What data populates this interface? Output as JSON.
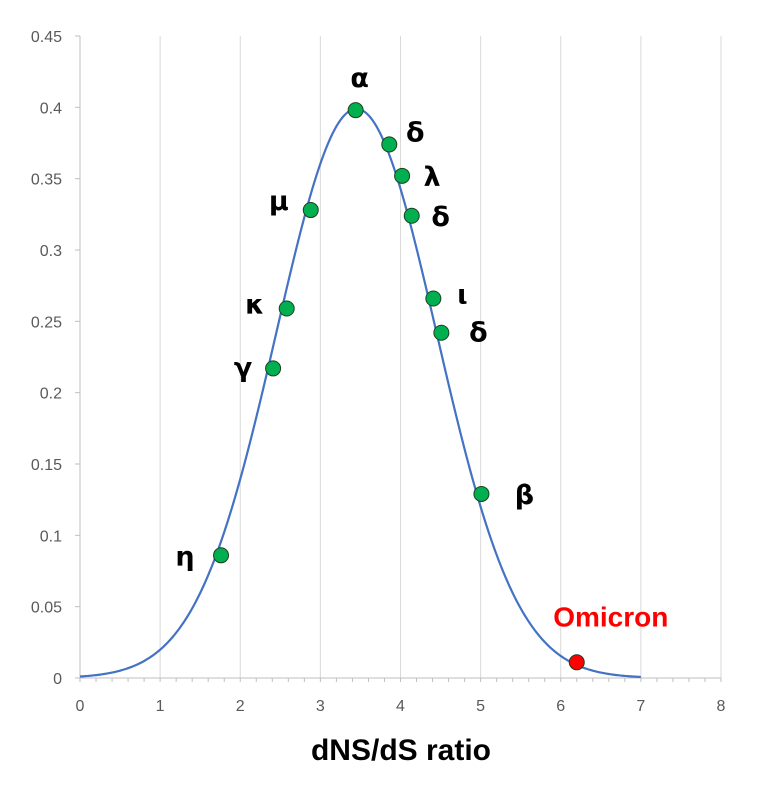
{
  "chart_data": {
    "type": "scatter",
    "title": "",
    "xlabel": "dNS/dS ratio",
    "ylabel": "",
    "xlim": [
      0,
      8
    ],
    "ylim": [
      0,
      0.45
    ],
    "xticks": [
      "0",
      "1",
      "2",
      "3",
      "4",
      "5",
      "6",
      "7",
      "8"
    ],
    "yticks": [
      "0",
      "0.05",
      "0.1",
      "0.15",
      "0.2",
      "0.25",
      "0.3",
      "0.35",
      "0.4",
      "0.45"
    ],
    "grid": "vertical",
    "curve": {
      "kind": "normal-density",
      "mean": 3.45,
      "sd": 1.0,
      "x_range": [
        0,
        7
      ],
      "color": "#4472c4"
    },
    "points": [
      {
        "label": "η",
        "x": 1.76,
        "y": 0.086,
        "color": "#00b050"
      },
      {
        "label": "γ",
        "x": 2.41,
        "y": 0.217,
        "color": "#00b050"
      },
      {
        "label": "κ",
        "x": 2.58,
        "y": 0.259,
        "color": "#00b050"
      },
      {
        "label": "μ",
        "x": 2.88,
        "y": 0.328,
        "color": "#00b050"
      },
      {
        "label": "α",
        "x": 3.44,
        "y": 0.398,
        "color": "#00b050"
      },
      {
        "label": "δ",
        "x": 3.86,
        "y": 0.374,
        "color": "#00b050"
      },
      {
        "label": "λ",
        "x": 4.02,
        "y": 0.352,
        "color": "#00b050"
      },
      {
        "label": "δ",
        "x": 4.14,
        "y": 0.324,
        "color": "#00b050"
      },
      {
        "label": "ι",
        "x": 4.41,
        "y": 0.266,
        "color": "#00b050"
      },
      {
        "label": "δ",
        "x": 4.51,
        "y": 0.242,
        "color": "#00b050"
      },
      {
        "label": "β",
        "x": 5.01,
        "y": 0.129,
        "color": "#00b050"
      },
      {
        "label": "Omicron",
        "x": 6.2,
        "y": 0.011,
        "color": "#ff0000",
        "highlight": true
      }
    ]
  }
}
